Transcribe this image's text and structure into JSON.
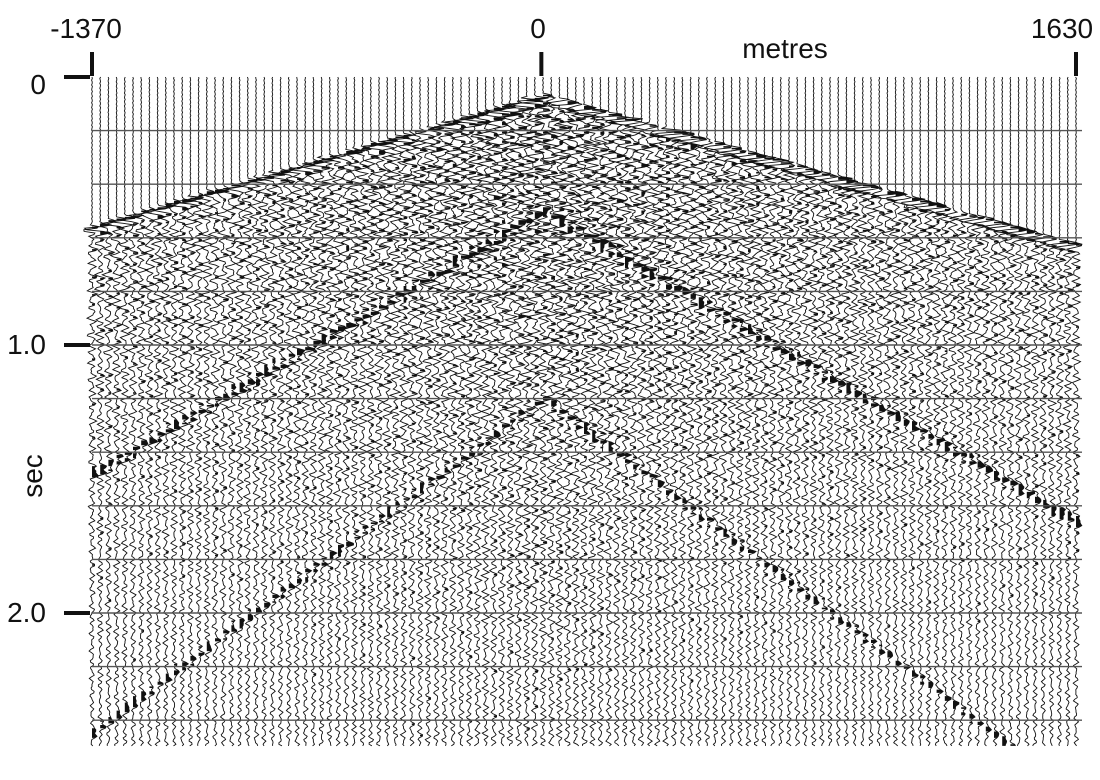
{
  "chart_data": {
    "type": "seismic_shot_gather",
    "x_axis": {
      "label": "metres",
      "range": [
        -1370,
        1630
      ],
      "ticks": [
        {
          "value": -1370,
          "label": "-1370"
        },
        {
          "value": 0,
          "label": "0"
        },
        {
          "value": 1630,
          "label": "1630"
        }
      ],
      "position": "top"
    },
    "y_axis": {
      "label": "sec",
      "range": [
        0,
        2.5
      ],
      "inverted": true,
      "ticks": [
        {
          "value": 0,
          "label": "0"
        },
        {
          "value": 1.0,
          "label": "1.0"
        },
        {
          "value": 2.0,
          "label": "2.0"
        }
      ],
      "gridline_interval_sec": 0.2
    },
    "source_offset_m": 0,
    "trace_count": 121,
    "first_break": {
      "apex_time_sec": 0.06,
      "time_at_left_edge_sec": 0.55,
      "time_at_right_edge_sec": 0.62
    },
    "trace_fill": "positive peaks filled black (wiggle-variable-area)",
    "colors": {
      "trace": "#111111",
      "grid": "#555555",
      "background": "#ffffff"
    }
  }
}
